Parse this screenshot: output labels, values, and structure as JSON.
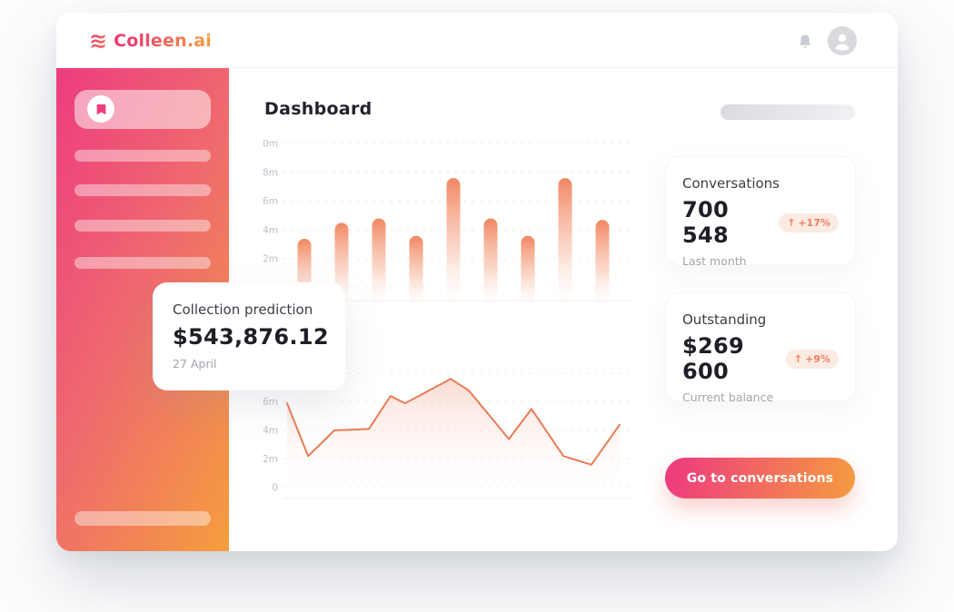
{
  "header": {
    "logo_text": "Colleen.ai",
    "logo_icon": "waves-icon",
    "notification_icon": "bell-icon",
    "account_icon": "user-avatar-icon"
  },
  "sidebar": {
    "active_item_icon": "bookmark-icon",
    "skeleton_item_count": 4,
    "bottom_skeleton_count": 1
  },
  "main": {
    "title": "Dashboard"
  },
  "cards": {
    "prediction": {
      "title": "Collection prediction",
      "value": "$543,876.12",
      "subtitle": "27 April"
    },
    "conversations": {
      "title": "Conversations",
      "value": "700 548",
      "badge_arrow": "↑",
      "badge_text": "+17%",
      "subtitle": "Last month"
    },
    "outstanding": {
      "title": "Outstanding",
      "value": "$269 600",
      "badge_arrow": "↑",
      "badge_text": "+9%",
      "subtitle": "Current balance"
    }
  },
  "cta": {
    "label": "Go to conversations"
  },
  "colors": {
    "gradient_start": "#ed3c7f",
    "gradient_end": "#f59e3d",
    "bar_color": "#f08059",
    "line_color": "#e87c55",
    "badge_text": "#ed805f",
    "badge_bg": "#fcebe3",
    "tick_label": "#bcc0c8",
    "gridline": "#e9ebef"
  },
  "chart_data": [
    {
      "type": "bar",
      "title": "",
      "unit": "m",
      "values": [
        3.4,
        4.5,
        4.8,
        3.6,
        7.6,
        4.8,
        3.6,
        7.6,
        4.7
      ],
      "ylim": [
        0,
        10
      ],
      "yticks": [
        {
          "value": 10,
          "label": "10m"
        },
        {
          "value": 8,
          "label": "8m"
        },
        {
          "value": 6,
          "label": "6m"
        },
        {
          "value": 4,
          "label": "4m"
        },
        {
          "value": 2,
          "label": "2m"
        },
        {
          "value": 0,
          "label": "0"
        }
      ],
      "grid": "horizontal-dashed",
      "legend": "none",
      "bar_color": "#f08059"
    },
    {
      "type": "area",
      "title": "",
      "unit": "m",
      "points": [
        {
          "x": 0.0,
          "y": 5.9
        },
        {
          "x": 0.063,
          "y": 2.2
        },
        {
          "x": 0.142,
          "y": 4.0
        },
        {
          "x": 0.246,
          "y": 4.1
        },
        {
          "x": 0.311,
          "y": 6.4
        },
        {
          "x": 0.355,
          "y": 5.9
        },
        {
          "x": 0.492,
          "y": 7.6
        },
        {
          "x": 0.546,
          "y": 6.8
        },
        {
          "x": 0.667,
          "y": 3.4
        },
        {
          "x": 0.735,
          "y": 5.5
        },
        {
          "x": 0.831,
          "y": 2.2
        },
        {
          "x": 0.915,
          "y": 1.6
        },
        {
          "x": 1.0,
          "y": 4.4
        }
      ],
      "ylim": [
        0,
        9
      ],
      "yticks": [
        {
          "value": 8,
          "label": "8m"
        },
        {
          "value": 6,
          "label": "6m"
        },
        {
          "value": 4,
          "label": "4m"
        },
        {
          "value": 2,
          "label": "2m"
        },
        {
          "value": 0,
          "label": "0"
        }
      ],
      "grid": "horizontal-dashed",
      "legend": "none",
      "line_color": "#e87c55"
    }
  ]
}
